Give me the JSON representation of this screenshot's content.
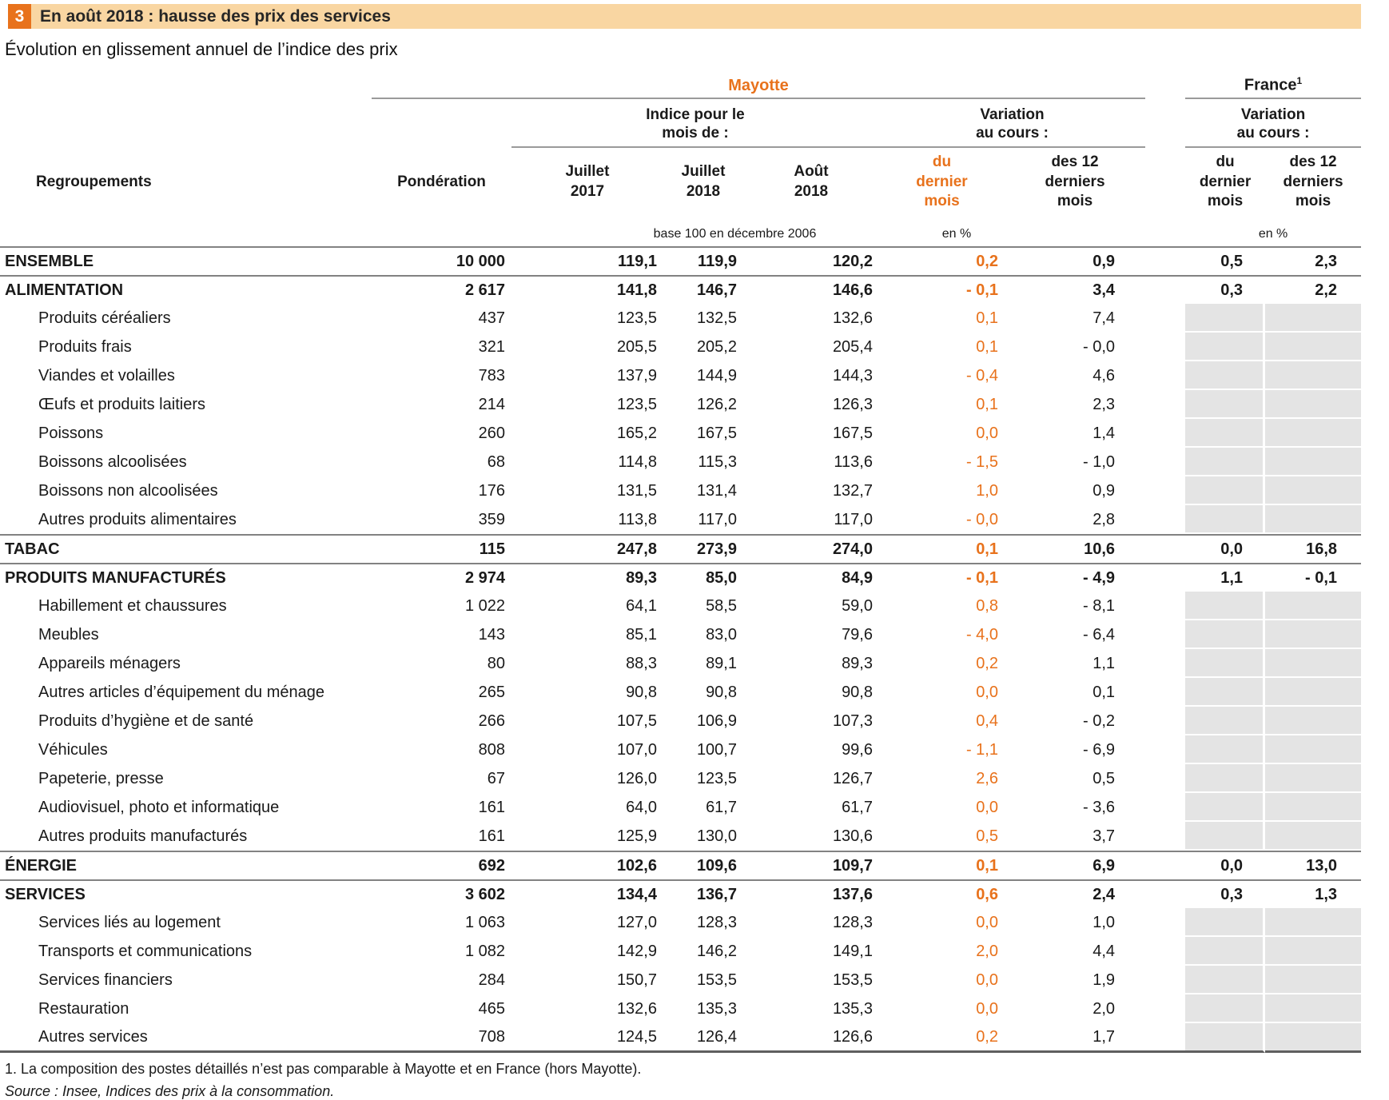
{
  "colors": {
    "accent_orange": "#e8721c",
    "title_bar_background": "#f9d6a2",
    "france_empty_cell_gray": "#e4e4e4"
  },
  "title_bar": {
    "number": "3",
    "title": "En août 2018 : hausse des prix des services"
  },
  "subtitle": "Évolution en glissement annuel de l’indice des prix",
  "table": {
    "regroupements_header": "Regroupements",
    "groups": {
      "mayotte": "Mayotte",
      "france": "France",
      "france_footnote_mark": "1"
    },
    "subgroups": {
      "indice": "Indice pour le\nmois de :",
      "variation": "Variation\nau cours :"
    },
    "columns": {
      "ponderation": "Pondération",
      "juillet_2017": "Juillet\n2017",
      "juillet_2018": "Juillet\n2018",
      "aout_2018": "Août\n2018",
      "du_dernier_mois": "du\ndernier\nmois",
      "des_12_derniers_mois": "des 12\nderniers\nmois"
    },
    "units": {
      "base": "base 100 en décembre 2006",
      "pct": "en %"
    },
    "rows": [
      {
        "label": "ENSEMBLE",
        "level": "major",
        "ponderation": "10 000",
        "juillet_2017": "119,1",
        "juillet_2018": "119,9",
        "aout_2018": "120,2",
        "var_mois_mayotte": "0,2",
        "var_12m_mayotte": "0,9",
        "var_mois_france": "0,5",
        "var_12m_france": "2,3"
      },
      {
        "label": "ALIMENTATION",
        "level": "major",
        "ponderation": "2 617",
        "juillet_2017": "141,8",
        "juillet_2018": "146,7",
        "aout_2018": "146,6",
        "var_mois_mayotte": "- 0,1",
        "var_12m_mayotte": "3,4",
        "var_mois_france": "0,3",
        "var_12m_france": "2,2"
      },
      {
        "label": "Produits céréaliers",
        "level": "sub",
        "ponderation": "437",
        "juillet_2017": "123,5",
        "juillet_2018": "132,5",
        "aout_2018": "132,6",
        "var_mois_mayotte": "0,1",
        "var_12m_mayotte": "7,4",
        "var_mois_france": null,
        "var_12m_france": null
      },
      {
        "label": "Produits frais",
        "level": "sub",
        "ponderation": "321",
        "juillet_2017": "205,5",
        "juillet_2018": "205,2",
        "aout_2018": "205,4",
        "var_mois_mayotte": "0,1",
        "var_12m_mayotte": "- 0,0",
        "var_mois_france": null,
        "var_12m_france": null
      },
      {
        "label": "Viandes et volailles",
        "level": "sub",
        "ponderation": "783",
        "juillet_2017": "137,9",
        "juillet_2018": "144,9",
        "aout_2018": "144,3",
        "var_mois_mayotte": "- 0,4",
        "var_12m_mayotte": "4,6",
        "var_mois_france": null,
        "var_12m_france": null
      },
      {
        "label": "Œufs et produits laitiers",
        "level": "sub",
        "ponderation": "214",
        "juillet_2017": "123,5",
        "juillet_2018": "126,2",
        "aout_2018": "126,3",
        "var_mois_mayotte": "0,1",
        "var_12m_mayotte": "2,3",
        "var_mois_france": null,
        "var_12m_france": null
      },
      {
        "label": "Poissons",
        "level": "sub",
        "ponderation": "260",
        "juillet_2017": "165,2",
        "juillet_2018": "167,5",
        "aout_2018": "167,5",
        "var_mois_mayotte": "0,0",
        "var_12m_mayotte": "1,4",
        "var_mois_france": null,
        "var_12m_france": null
      },
      {
        "label": "Boissons alcoolisées",
        "level": "sub",
        "ponderation": "68",
        "juillet_2017": "114,8",
        "juillet_2018": "115,3",
        "aout_2018": "113,6",
        "var_mois_mayotte": "- 1,5",
        "var_12m_mayotte": "- 1,0",
        "var_mois_france": null,
        "var_12m_france": null
      },
      {
        "label": "Boissons non alcoolisées",
        "level": "sub",
        "ponderation": "176",
        "juillet_2017": "131,5",
        "juillet_2018": "131,4",
        "aout_2018": "132,7",
        "var_mois_mayotte": "1,0",
        "var_12m_mayotte": "0,9",
        "var_mois_france": null,
        "var_12m_france": null
      },
      {
        "label": "Autres produits alimentaires",
        "level": "sub",
        "ponderation": "359",
        "juillet_2017": "113,8",
        "juillet_2018": "117,0",
        "aout_2018": "117,0",
        "var_mois_mayotte": "- 0,0",
        "var_12m_mayotte": "2,8",
        "var_mois_france": null,
        "var_12m_france": null
      },
      {
        "label": "TABAC",
        "level": "major",
        "ponderation": "115",
        "juillet_2017": "247,8",
        "juillet_2018": "273,9",
        "aout_2018": "274,0",
        "var_mois_mayotte": "0,1",
        "var_12m_mayotte": "10,6",
        "var_mois_france": "0,0",
        "var_12m_france": "16,8"
      },
      {
        "label": "PRODUITS MANUFACTURÉS",
        "level": "major",
        "ponderation": "2 974",
        "juillet_2017": "89,3",
        "juillet_2018": "85,0",
        "aout_2018": "84,9",
        "var_mois_mayotte": "- 0,1",
        "var_12m_mayotte": "- 4,9",
        "var_mois_france": "1,1",
        "var_12m_france": "- 0,1"
      },
      {
        "label": "Habillement et chaussures",
        "level": "sub",
        "ponderation": "1 022",
        "juillet_2017": "64,1",
        "juillet_2018": "58,5",
        "aout_2018": "59,0",
        "var_mois_mayotte": "0,8",
        "var_12m_mayotte": "- 8,1",
        "var_mois_france": null,
        "var_12m_france": null
      },
      {
        "label": "Meubles",
        "level": "sub",
        "ponderation": "143",
        "juillet_2017": "85,1",
        "juillet_2018": "83,0",
        "aout_2018": "79,6",
        "var_mois_mayotte": "- 4,0",
        "var_12m_mayotte": "- 6,4",
        "var_mois_france": null,
        "var_12m_france": null
      },
      {
        "label": "Appareils ménagers",
        "level": "sub",
        "ponderation": "80",
        "juillet_2017": "88,3",
        "juillet_2018": "89,1",
        "aout_2018": "89,3",
        "var_mois_mayotte": "0,2",
        "var_12m_mayotte": "1,1",
        "var_mois_france": null,
        "var_12m_france": null
      },
      {
        "label": "Autres articles d’équipement du ménage",
        "level": "sub",
        "ponderation": "265",
        "juillet_2017": "90,8",
        "juillet_2018": "90,8",
        "aout_2018": "90,8",
        "var_mois_mayotte": "0,0",
        "var_12m_mayotte": "0,1",
        "var_mois_france": null,
        "var_12m_france": null
      },
      {
        "label": "Produits d’hygiène et de santé",
        "level": "sub",
        "ponderation": "266",
        "juillet_2017": "107,5",
        "juillet_2018": "106,9",
        "aout_2018": "107,3",
        "var_mois_mayotte": "0,4",
        "var_12m_mayotte": "- 0,2",
        "var_mois_france": null,
        "var_12m_france": null
      },
      {
        "label": "Véhicules",
        "level": "sub",
        "ponderation": "808",
        "juillet_2017": "107,0",
        "juillet_2018": "100,7",
        "aout_2018": "99,6",
        "var_mois_mayotte": "- 1,1",
        "var_12m_mayotte": "- 6,9",
        "var_mois_france": null,
        "var_12m_france": null
      },
      {
        "label": "Papeterie, presse",
        "level": "sub",
        "ponderation": "67",
        "juillet_2017": "126,0",
        "juillet_2018": "123,5",
        "aout_2018": "126,7",
        "var_mois_mayotte": "2,6",
        "var_12m_mayotte": "0,5",
        "var_mois_france": null,
        "var_12m_france": null
      },
      {
        "label": "Audiovisuel, photo et informatique",
        "level": "sub",
        "ponderation": "161",
        "juillet_2017": "64,0",
        "juillet_2018": "61,7",
        "aout_2018": "61,7",
        "var_mois_mayotte": "0,0",
        "var_12m_mayotte": "- 3,6",
        "var_mois_france": null,
        "var_12m_france": null
      },
      {
        "label": "Autres produits manufacturés",
        "level": "sub",
        "ponderation": "161",
        "juillet_2017": "125,9",
        "juillet_2018": "130,0",
        "aout_2018": "130,6",
        "var_mois_mayotte": "0,5",
        "var_12m_mayotte": "3,7",
        "var_mois_france": null,
        "var_12m_france": null
      },
      {
        "label": "ÉNERGIE",
        "level": "major",
        "ponderation": "692",
        "juillet_2017": "102,6",
        "juillet_2018": "109,6",
        "aout_2018": "109,7",
        "var_mois_mayotte": "0,1",
        "var_12m_mayotte": "6,9",
        "var_mois_france": "0,0",
        "var_12m_france": "13,0"
      },
      {
        "label": "SERVICES",
        "level": "major",
        "ponderation": "3 602",
        "juillet_2017": "134,4",
        "juillet_2018": "136,7",
        "aout_2018": "137,6",
        "var_mois_mayotte": "0,6",
        "var_12m_mayotte": "2,4",
        "var_mois_france": "0,3",
        "var_12m_france": "1,3"
      },
      {
        "label": "Services liés au logement",
        "level": "sub",
        "ponderation": "1 063",
        "juillet_2017": "127,0",
        "juillet_2018": "128,3",
        "aout_2018": "128,3",
        "var_mois_mayotte": "0,0",
        "var_12m_mayotte": "1,0",
        "var_mois_france": null,
        "var_12m_france": null
      },
      {
        "label": "Transports et communications",
        "level": "sub",
        "ponderation": "1 082",
        "juillet_2017": "142,9",
        "juillet_2018": "146,2",
        "aout_2018": "149,1",
        "var_mois_mayotte": "2,0",
        "var_12m_mayotte": "4,4",
        "var_mois_france": null,
        "var_12m_france": null
      },
      {
        "label": "Services financiers",
        "level": "sub",
        "ponderation": "284",
        "juillet_2017": "150,7",
        "juillet_2018": "153,5",
        "aout_2018": "153,5",
        "var_mois_mayotte": "0,0",
        "var_12m_mayotte": "1,9",
        "var_mois_france": null,
        "var_12m_france": null
      },
      {
        "label": "Restauration",
        "level": "sub",
        "ponderation": "465",
        "juillet_2017": "132,6",
        "juillet_2018": "135,3",
        "aout_2018": "135,3",
        "var_mois_mayotte": "0,0",
        "var_12m_mayotte": "2,0",
        "var_mois_france": null,
        "var_12m_france": null
      },
      {
        "label": "Autres services",
        "level": "sub",
        "ponderation": "708",
        "juillet_2017": "124,5",
        "juillet_2018": "126,4",
        "aout_2018": "126,6",
        "var_mois_mayotte": "0,2",
        "var_12m_mayotte": "1,7",
        "var_mois_france": null,
        "var_12m_france": null
      }
    ]
  },
  "footnotes": {
    "note1": "1. La composition des postes détaillés n’est pas comparable à Mayotte et en France (hors Mayotte).",
    "source": "Source : Insee, Indices des prix à la consommation."
  }
}
